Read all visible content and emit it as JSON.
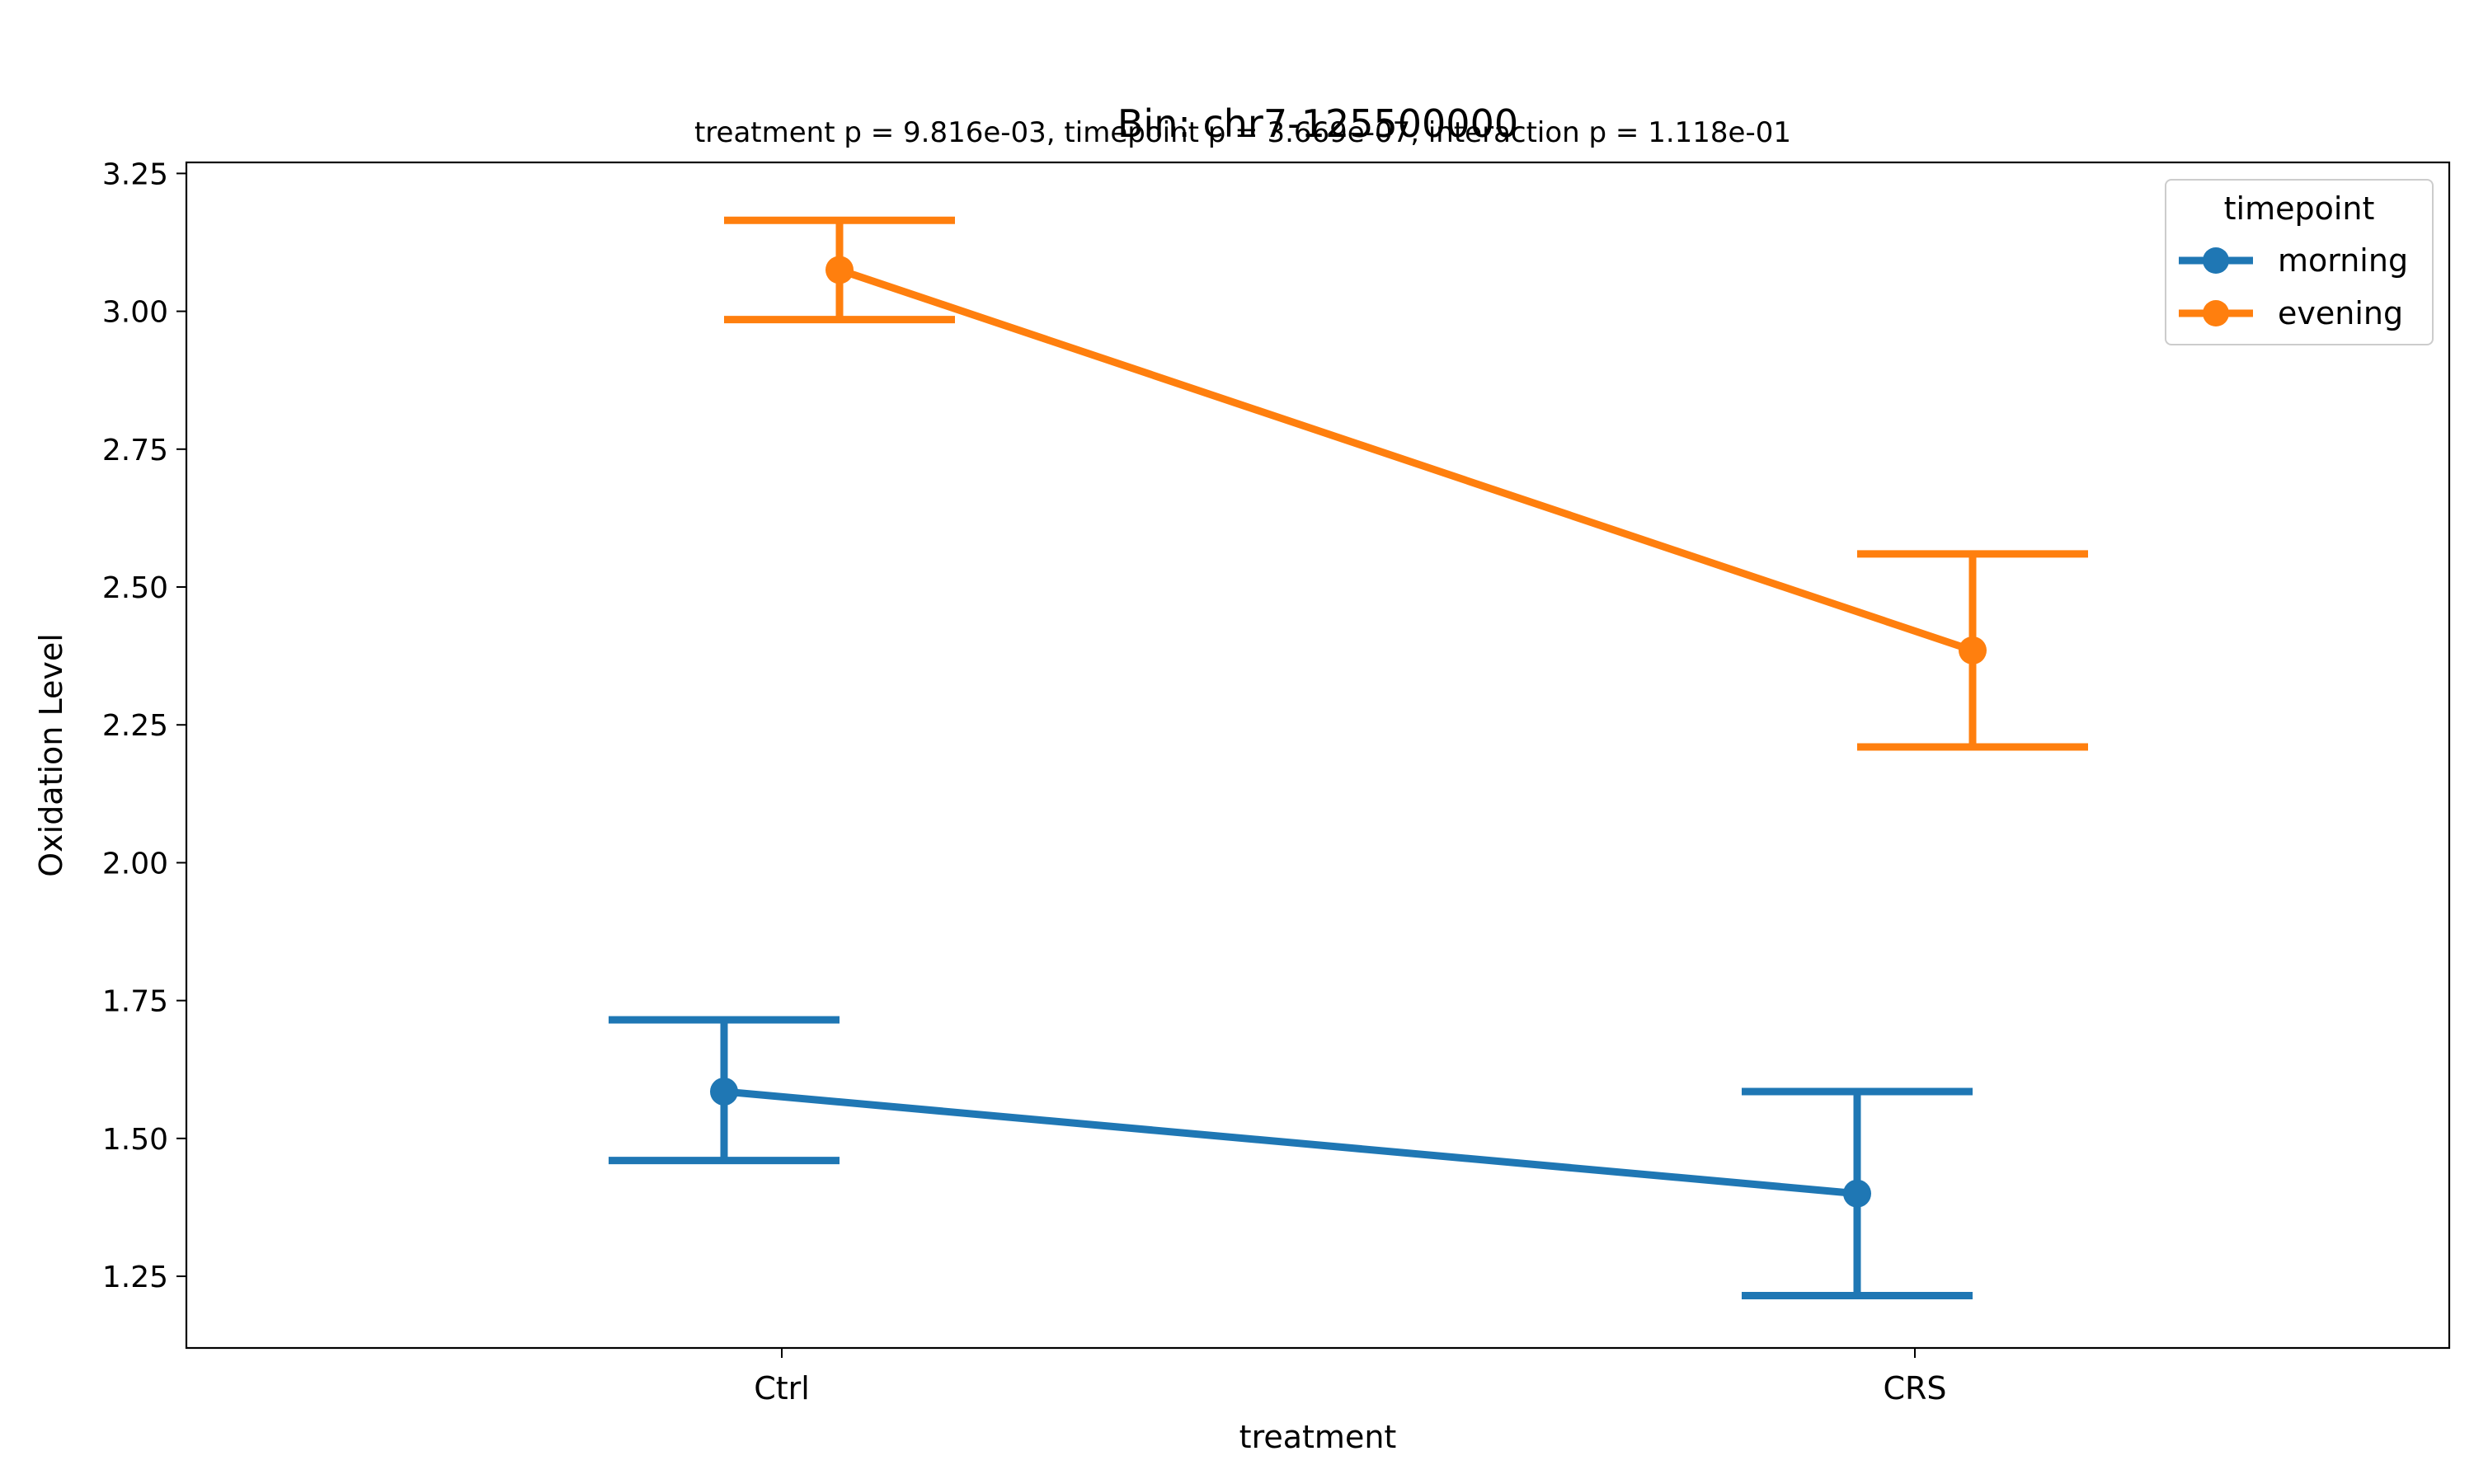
{
  "chart_data": {
    "type": "line",
    "title": "Bin: chr7-125500000",
    "subtitle": "treatment p = 9.816e-03, timepoint p = 3.669e-07, interaction p = 1.118e-01",
    "xlabel": "treatment",
    "ylabel": "Oxidation Level",
    "categories": [
      "Ctrl",
      "CRS"
    ],
    "ylim": [
      1.12,
      3.27
    ],
    "yticks": [
      1.25,
      1.5,
      1.75,
      2.0,
      2.25,
      2.5,
      2.75,
      3.0,
      3.25
    ],
    "ytick_labels": [
      "1.25",
      "1.50",
      "1.75",
      "2.00",
      "2.25",
      "2.50",
      "2.75",
      "3.00",
      "3.25"
    ],
    "grid": false,
    "legend": {
      "title": "timepoint",
      "position": "top-right"
    },
    "series": [
      {
        "name": "morning",
        "color": "#1f77b4",
        "values": [
          1.585,
          1.4
        ],
        "error_low": [
          1.46,
          1.215
        ],
        "error_high": [
          1.715,
          1.585
        ]
      },
      {
        "name": "evening",
        "color": "#ff7f0e",
        "values": [
          3.075,
          2.385
        ],
        "error_low": [
          2.985,
          2.21
        ],
        "error_high": [
          3.165,
          2.56
        ]
      }
    ]
  }
}
